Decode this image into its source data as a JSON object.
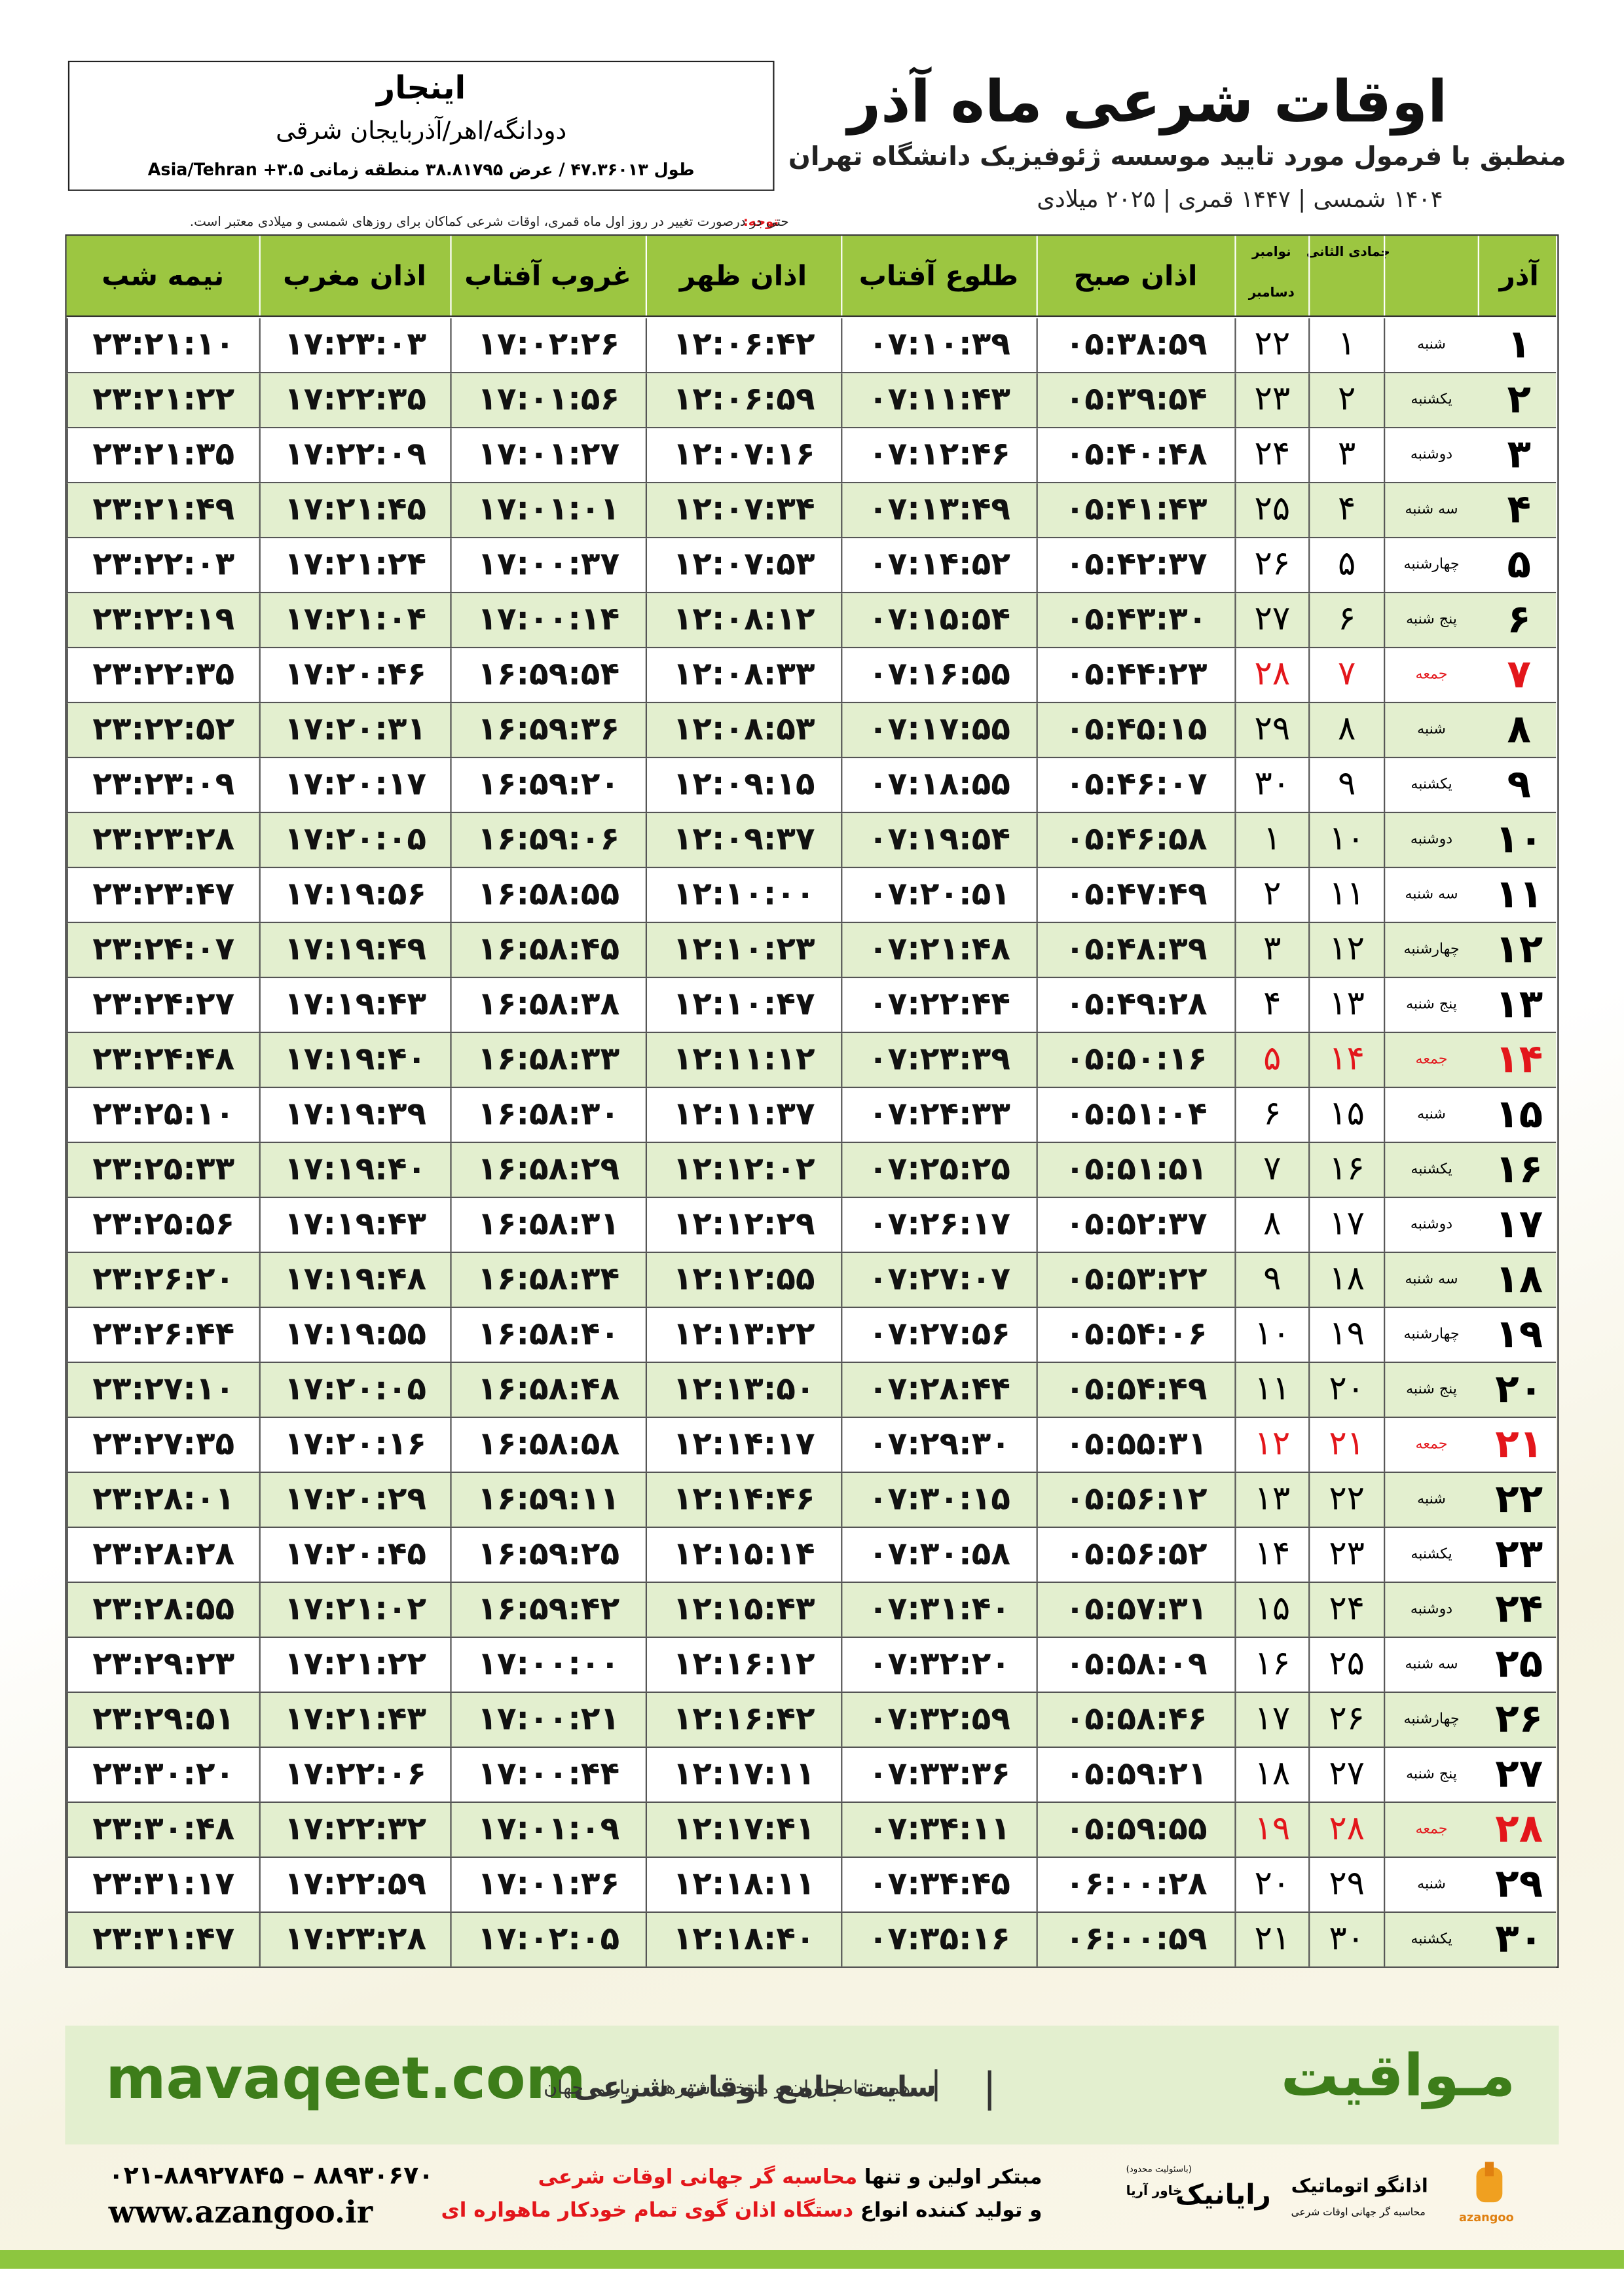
{
  "header": {
    "title": "اوقات شرعی ماه آذر",
    "subtitle": "منطبق با فرمول مورد تایید موسسه ژئوفیزیک دانشگاه تهران",
    "dates": "۱۴۰۴ شمسی | ۱۴۴۷ قمری | ۲۰۲۵ میلادی"
  },
  "location": {
    "name": "اینجار",
    "region": "دودانگه/اهر/آذربایجان شرقی",
    "coords": "طول ۴۷.۳۶۰۱۳ / عرض ۳۸.۸۱۷۹۵ منطقه زمانی ۳.۵+ Asia/Tehran"
  },
  "note": {
    "label": "توجه:",
    "text": "حتی در درصورت تغییر در روز اول ماه قمری، اوقات شرعی کماکان برای روزهای شمسی و میلادی معتبر است."
  },
  "table": {
    "columns": [
      "آذر",
      "جمادی الثانی",
      "نوامبر",
      "دسامبر",
      "اذان صبح",
      "طلوع آفتاب",
      "اذان ظهر",
      "غروب آفتاب",
      "اذان مغرب",
      "نیمه شب"
    ],
    "header_color": "#9cc641",
    "row_colors": [
      "#ffffff",
      "#e3efcf"
    ],
    "rows": [
      {
        "cells": [
          "۱",
          "شنبه",
          "۱",
          "۲۲",
          "۰۵:۳۸:۵۹",
          "۰۷:۱۰:۳۹",
          "۱۲:۰۶:۴۲",
          "۱۷:۰۲:۲۶",
          "۱۷:۲۳:۰۳",
          "۲۳:۲۱:۱۰"
        ],
        "color": "#000000"
      },
      {
        "cells": [
          "۲",
          "یکشنبه",
          "۲",
          "۲۳",
          "۰۵:۳۹:۵۴",
          "۰۷:۱۱:۴۳",
          "۱۲:۰۶:۵۹",
          "۱۷:۰۱:۵۶",
          "۱۷:۲۲:۳۵",
          "۲۳:۲۱:۲۲"
        ],
        "color": "#000000"
      },
      {
        "cells": [
          "۳",
          "دوشنبه",
          "۳",
          "۲۴",
          "۰۵:۴۰:۴۸",
          "۰۷:۱۲:۴۶",
          "۱۲:۰۷:۱۶",
          "۱۷:۰۱:۲۷",
          "۱۷:۲۲:۰۹",
          "۲۳:۲۱:۳۵"
        ],
        "color": "#000000"
      },
      {
        "cells": [
          "۴",
          "سه شنبه",
          "۴",
          "۲۵",
          "۰۵:۴۱:۴۳",
          "۰۷:۱۳:۴۹",
          "۱۲:۰۷:۳۴",
          "۱۷:۰۱:۰۱",
          "۱۷:۲۱:۴۵",
          "۲۳:۲۱:۴۹"
        ],
        "color": "#000000"
      },
      {
        "cells": [
          "۵",
          "چهارشنبه",
          "۵",
          "۲۶",
          "۰۵:۴۲:۳۷",
          "۰۷:۱۴:۵۲",
          "۱۲:۰۷:۵۳",
          "۱۷:۰۰:۳۷",
          "۱۷:۲۱:۲۴",
          "۲۳:۲۲:۰۳"
        ],
        "color": "#000000"
      },
      {
        "cells": [
          "۶",
          "پنج شنبه",
          "۶",
          "۲۷",
          "۰۵:۴۳:۳۰",
          "۰۷:۱۵:۵۴",
          "۱۲:۰۸:۱۲",
          "۱۷:۰۰:۱۴",
          "۱۷:۲۱:۰۴",
          "۲۳:۲۲:۱۹"
        ],
        "color": "#000000"
      },
      {
        "cells": [
          "۷",
          "جمعه",
          "۷",
          "۲۸",
          "۰۵:۴۴:۲۳",
          "۰۷:۱۶:۵۵",
          "۱۲:۰۸:۳۳",
          "۱۶:۵۹:۵۴",
          "۱۷:۲۰:۴۶",
          "۲۳:۲۲:۳۵"
        ],
        "color": "#e3161b"
      },
      {
        "cells": [
          "۸",
          "شنبه",
          "۸",
          "۲۹",
          "۰۵:۴۵:۱۵",
          "۰۷:۱۷:۵۵",
          "۱۲:۰۸:۵۳",
          "۱۶:۵۹:۳۶",
          "۱۷:۲۰:۳۱",
          "۲۳:۲۲:۵۲"
        ],
        "color": "#000000"
      },
      {
        "cells": [
          "۹",
          "یکشنبه",
          "۹",
          "۳۰",
          "۰۵:۴۶:۰۷",
          "۰۷:۱۸:۵۵",
          "۱۲:۰۹:۱۵",
          "۱۶:۵۹:۲۰",
          "۱۷:۲۰:۱۷",
          "۲۳:۲۳:۰۹"
        ],
        "color": "#000000"
      },
      {
        "cells": [
          "۱۰",
          "دوشنبه",
          "۱۰",
          "۱",
          "۰۵:۴۶:۵۸",
          "۰۷:۱۹:۵۴",
          "۱۲:۰۹:۳۷",
          "۱۶:۵۹:۰۶",
          "۱۷:۲۰:۰۵",
          "۲۳:۲۳:۲۸"
        ],
        "color": "#000000"
      },
      {
        "cells": [
          "۱۱",
          "سه شنبه",
          "۱۱",
          "۲",
          "۰۵:۴۷:۴۹",
          "۰۷:۲۰:۵۱",
          "۱۲:۱۰:۰۰",
          "۱۶:۵۸:۵۵",
          "۱۷:۱۹:۵۶",
          "۲۳:۲۳:۴۷"
        ],
        "color": "#000000"
      },
      {
        "cells": [
          "۱۲",
          "چهارشنبه",
          "۱۲",
          "۳",
          "۰۵:۴۸:۳۹",
          "۰۷:۲۱:۴۸",
          "۱۲:۱۰:۲۳",
          "۱۶:۵۸:۴۵",
          "۱۷:۱۹:۴۹",
          "۲۳:۲۴:۰۷"
        ],
        "color": "#000000"
      },
      {
        "cells": [
          "۱۳",
          "پنج شنبه",
          "۱۳",
          "۴",
          "۰۵:۴۹:۲۸",
          "۰۷:۲۲:۴۴",
          "۱۲:۱۰:۴۷",
          "۱۶:۵۸:۳۸",
          "۱۷:۱۹:۴۳",
          "۲۳:۲۴:۲۷"
        ],
        "color": "#000000"
      },
      {
        "cells": [
          "۱۴",
          "جمعه",
          "۱۴",
          "۵",
          "۰۵:۵۰:۱۶",
          "۰۷:۲۳:۳۹",
          "۱۲:۱۱:۱۲",
          "۱۶:۵۸:۳۳",
          "۱۷:۱۹:۴۰",
          "۲۳:۲۴:۴۸"
        ],
        "color": "#e3161b"
      },
      {
        "cells": [
          "۱۵",
          "شنبه",
          "۱۵",
          "۶",
          "۰۵:۵۱:۰۴",
          "۰۷:۲۴:۳۳",
          "۱۲:۱۱:۳۷",
          "۱۶:۵۸:۳۰",
          "۱۷:۱۹:۳۹",
          "۲۳:۲۵:۱۰"
        ],
        "color": "#000000"
      },
      {
        "cells": [
          "۱۶",
          "یکشنبه",
          "۱۶",
          "۷",
          "۰۵:۵۱:۵۱",
          "۰۷:۲۵:۲۵",
          "۱۲:۱۲:۰۲",
          "۱۶:۵۸:۲۹",
          "۱۷:۱۹:۴۰",
          "۲۳:۲۵:۳۳"
        ],
        "color": "#000000"
      },
      {
        "cells": [
          "۱۷",
          "دوشنبه",
          "۱۷",
          "۸",
          "۰۵:۵۲:۳۷",
          "۰۷:۲۶:۱۷",
          "۱۲:۱۲:۲۹",
          "۱۶:۵۸:۳۱",
          "۱۷:۱۹:۴۳",
          "۲۳:۲۵:۵۶"
        ],
        "color": "#000000"
      },
      {
        "cells": [
          "۱۸",
          "سه شنبه",
          "۱۸",
          "۹",
          "۰۵:۵۳:۲۲",
          "۰۷:۲۷:۰۷",
          "۱۲:۱۲:۵۵",
          "۱۶:۵۸:۳۴",
          "۱۷:۱۹:۴۸",
          "۲۳:۲۶:۲۰"
        ],
        "color": "#000000"
      },
      {
        "cells": [
          "۱۹",
          "چهارشنبه",
          "۱۹",
          "۱۰",
          "۰۵:۵۴:۰۶",
          "۰۷:۲۷:۵۶",
          "۱۲:۱۳:۲۲",
          "۱۶:۵۸:۴۰",
          "۱۷:۱۹:۵۵",
          "۲۳:۲۶:۴۴"
        ],
        "color": "#000000"
      },
      {
        "cells": [
          "۲۰",
          "پنج شنبه",
          "۲۰",
          "۱۱",
          "۰۵:۵۴:۴۹",
          "۰۷:۲۸:۴۴",
          "۱۲:۱۳:۵۰",
          "۱۶:۵۸:۴۸",
          "۱۷:۲۰:۰۵",
          "۲۳:۲۷:۱۰"
        ],
        "color": "#000000"
      },
      {
        "cells": [
          "۲۱",
          "جمعه",
          "۲۱",
          "۱۲",
          "۰۵:۵۵:۳۱",
          "۰۷:۲۹:۳۰",
          "۱۲:۱۴:۱۷",
          "۱۶:۵۸:۵۸",
          "۱۷:۲۰:۱۶",
          "۲۳:۲۷:۳۵"
        ],
        "color": "#e3161b"
      },
      {
        "cells": [
          "۲۲",
          "شنبه",
          "۲۲",
          "۱۳",
          "۰۵:۵۶:۱۲",
          "۰۷:۳۰:۱۵",
          "۱۲:۱۴:۴۶",
          "۱۶:۵۹:۱۱",
          "۱۷:۲۰:۲۹",
          "۲۳:۲۸:۰۱"
        ],
        "color": "#000000"
      },
      {
        "cells": [
          "۲۳",
          "یکشنبه",
          "۲۳",
          "۱۴",
          "۰۵:۵۶:۵۲",
          "۰۷:۳۰:۵۸",
          "۱۲:۱۵:۱۴",
          "۱۶:۵۹:۲۵",
          "۱۷:۲۰:۴۵",
          "۲۳:۲۸:۲۸"
        ],
        "color": "#000000"
      },
      {
        "cells": [
          "۲۴",
          "دوشنبه",
          "۲۴",
          "۱۵",
          "۰۵:۵۷:۳۱",
          "۰۷:۳۱:۴۰",
          "۱۲:۱۵:۴۳",
          "۱۶:۵۹:۴۲",
          "۱۷:۲۱:۰۲",
          "۲۳:۲۸:۵۵"
        ],
        "color": "#000000"
      },
      {
        "cells": [
          "۲۵",
          "سه شنبه",
          "۲۵",
          "۱۶",
          "۰۵:۵۸:۰۹",
          "۰۷:۳۲:۲۰",
          "۱۲:۱۶:۱۲",
          "۱۷:۰۰:۰۰",
          "۱۷:۲۱:۲۲",
          "۲۳:۲۹:۲۳"
        ],
        "color": "#000000"
      },
      {
        "cells": [
          "۲۶",
          "چهارشنبه",
          "۲۶",
          "۱۷",
          "۰۵:۵۸:۴۶",
          "۰۷:۳۲:۵۹",
          "۱۲:۱۶:۴۲",
          "۱۷:۰۰:۲۱",
          "۱۷:۲۱:۴۳",
          "۲۳:۲۹:۵۱"
        ],
        "color": "#000000"
      },
      {
        "cells": [
          "۲۷",
          "پنج شنبه",
          "۲۷",
          "۱۸",
          "۰۵:۵۹:۲۱",
          "۰۷:۳۳:۳۶",
          "۱۲:۱۷:۱۱",
          "۱۷:۰۰:۴۴",
          "۱۷:۲۲:۰۶",
          "۲۳:۳۰:۲۰"
        ],
        "color": "#000000"
      },
      {
        "cells": [
          "۲۸",
          "جمعه",
          "۲۸",
          "۱۹",
          "۰۵:۵۹:۵۵",
          "۰۷:۳۴:۱۱",
          "۱۲:۱۷:۴۱",
          "۱۷:۰۱:۰۹",
          "۱۷:۲۲:۳۲",
          "۲۳:۳۰:۴۸"
        ],
        "color": "#e3161b"
      },
      {
        "cells": [
          "۲۹",
          "شنبه",
          "۲۹",
          "۲۰",
          "۰۶:۰۰:۲۸",
          "۰۷:۳۴:۴۵",
          "۱۲:۱۸:۱۱",
          "۱۷:۰۱:۳۶",
          "۱۷:۲۲:۵۹",
          "۲۳:۳۱:۱۷"
        ],
        "color": "#000000"
      },
      {
        "cells": [
          "۳۰",
          "یکشنبه",
          "۳۰",
          "۲۱",
          "۰۶:۰۰:۵۹",
          "۰۷:۳۵:۱۶",
          "۱۲:۱۸:۴۰",
          "۱۷:۰۲:۰۵",
          "۱۷:۲۳:۲۸",
          "۲۳:۳۱:۴۷"
        ],
        "color": "#000000"
      }
    ]
  },
  "footer": {
    "banner": {
      "url": "mavaqeet.com",
      "brand": "مـواقیت",
      "slogan": "سایت جامع اوقات شرعی",
      "coverage": "همه نقاط ایران و منتخب شهرهای زیارتی جهان"
    },
    "contact": {
      "phone": "۰۲۱-۸۸۹۲۷۸۴۵ – ۸۸۹۳۰۶۷۰",
      "web": "www.azangoo.ir"
    },
    "tagline": {
      "line1_start": "مبتکر اولین و تنها",
      "line1_highlight": "محاسبه گر جهانی اوقات شرعی",
      "line2_start": "و تولید کننده انواع",
      "line2_highlight": "دستگاه اذان گوی تمام خودکار ماهواره ای"
    },
    "logos": {
      "rayanik": "رایانیک",
      "khavar": "خاور آریا",
      "limited": "(باسئولیت محدود)",
      "azangoo_fa": "اذانگو اتوماتیک",
      "azangoo_sub": "محاسبه گر جهانی اوقات شرعی",
      "azangoo_en": "azangoo"
    }
  }
}
